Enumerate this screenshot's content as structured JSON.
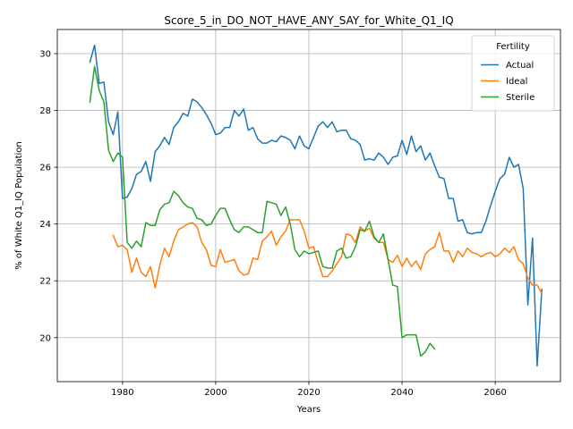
{
  "chart_data": {
    "type": "line",
    "title": "Score_5_in_DO_NOT_HAVE_ANY_SAY_for_White_Q1_IQ",
    "xlabel": "Years",
    "ylabel": "% of White Q1_IQ Population",
    "xlim": [
      1966,
      2074
    ],
    "ylim": [
      18.45,
      30.85
    ],
    "xticks": [
      1980,
      2000,
      2020,
      2040,
      2060
    ],
    "yticks": [
      20,
      22,
      24,
      26,
      28,
      30
    ],
    "grid": true,
    "legend": {
      "title": "Fertility",
      "position": "top-right"
    },
    "series": [
      {
        "name": "Actual",
        "color": "#1f77b4",
        "x": [
          1973,
          1974,
          1975,
          1976,
          1977,
          1978,
          1979,
          1980,
          1981,
          1982,
          1983,
          1984,
          1985,
          1986,
          1987,
          1988,
          1989,
          1990,
          1991,
          1992,
          1993,
          1994,
          1995,
          1996,
          1997,
          1998,
          1999,
          2000,
          2001,
          2002,
          2003,
          2004,
          2005,
          2006,
          2007,
          2008,
          2009,
          2010,
          2011,
          2012,
          2013,
          2014,
          2015,
          2016,
          2017,
          2018,
          2019,
          2020,
          2021,
          2022,
          2023,
          2024,
          2025,
          2026,
          2027,
          2028,
          2029,
          2030,
          2031,
          2032,
          2033,
          2034,
          2035,
          2036,
          2037,
          2038,
          2039,
          2040,
          2041,
          2042,
          2043,
          2044,
          2045,
          2046,
          2047,
          2048,
          2049,
          2050,
          2051,
          2052,
          2053,
          2054,
          2055,
          2056,
          2057,
          2058,
          2059,
          2060,
          2061,
          2062,
          2063,
          2064,
          2065,
          2066,
          2067,
          2068,
          2069,
          2070
        ],
        "values": [
          29.7,
          30.3,
          28.95,
          29.0,
          27.6,
          27.15,
          27.95,
          24.9,
          24.95,
          25.25,
          25.75,
          25.85,
          26.2,
          25.5,
          26.55,
          26.75,
          27.05,
          26.8,
          27.4,
          27.6,
          27.9,
          27.8,
          28.4,
          28.3,
          28.1,
          27.85,
          27.55,
          27.15,
          27.2,
          27.4,
          27.4,
          28.0,
          27.8,
          28.05,
          27.3,
          27.4,
          27.0,
          26.85,
          26.85,
          26.95,
          26.9,
          27.1,
          27.05,
          26.95,
          26.65,
          27.1,
          26.75,
          26.65,
          27.05,
          27.45,
          27.6,
          27.4,
          27.6,
          27.25,
          27.3,
          27.3,
          27.0,
          26.95,
          26.8,
          26.25,
          26.3,
          26.25,
          26.5,
          26.35,
          26.1,
          26.35,
          26.4,
          26.95,
          26.45,
          27.1,
          26.55,
          26.75,
          26.25,
          26.5,
          26.05,
          25.65,
          25.6,
          24.9,
          24.9,
          24.1,
          24.15,
          23.7,
          23.65,
          23.7,
          23.7,
          24.1,
          24.65,
          25.15,
          25.6,
          25.75,
          26.35,
          26.0,
          26.1,
          25.25,
          21.15,
          23.5,
          19.0,
          21.7
        ]
      },
      {
        "name": "Ideal",
        "color": "#ff7f0e",
        "x": [
          1978,
          1979,
          1980,
          1981,
          1982,
          1983,
          1984,
          1985,
          1986,
          1987,
          1988,
          1989,
          1990,
          1991,
          1992,
          1993,
          1994,
          1995,
          1996,
          1997,
          1998,
          1999,
          2000,
          2001,
          2002,
          2003,
          2004,
          2005,
          2006,
          2007,
          2008,
          2009,
          2010,
          2011,
          2012,
          2013,
          2014,
          2015,
          2016,
          2017,
          2018,
          2019,
          2020,
          2021,
          2022,
          2023,
          2024,
          2025,
          2026,
          2027,
          2028,
          2029,
          2030,
          2031,
          2032,
          2033,
          2034,
          2035,
          2036,
          2037,
          2038,
          2039,
          2040,
          2041,
          2042,
          2043,
          2044,
          2045,
          2046,
          2047,
          2048,
          2049,
          2050,
          2051,
          2052,
          2053,
          2054,
          2055,
          2056,
          2057,
          2058,
          2059,
          2060,
          2061,
          2062,
          2063,
          2064,
          2065,
          2066,
          2067,
          2068,
          2069,
          2070
        ],
        "values": [
          23.6,
          23.2,
          23.25,
          23.1,
          22.3,
          22.8,
          22.3,
          22.15,
          22.5,
          21.75,
          22.55,
          23.15,
          22.85,
          23.4,
          23.8,
          23.9,
          24.0,
          24.05,
          23.9,
          23.35,
          23.1,
          22.55,
          22.5,
          23.1,
          22.65,
          22.7,
          22.75,
          22.35,
          22.2,
          22.25,
          22.8,
          22.75,
          23.4,
          23.55,
          23.75,
          23.25,
          23.55,
          23.75,
          24.15,
          24.15,
          24.15,
          23.75,
          23.15,
          23.2,
          22.65,
          22.15,
          22.15,
          22.35,
          22.6,
          22.85,
          23.65,
          23.6,
          23.35,
          23.9,
          23.75,
          23.85,
          23.5,
          23.35,
          23.35,
          22.75,
          22.65,
          22.9,
          22.5,
          22.8,
          22.5,
          22.7,
          22.4,
          22.95,
          23.1,
          23.2,
          23.7,
          23.05,
          23.05,
          22.65,
          23.05,
          22.85,
          23.15,
          23.0,
          22.95,
          22.85,
          22.95,
          23.0,
          22.85,
          22.95,
          23.15,
          23.0,
          23.2,
          22.75,
          22.6,
          22.1,
          21.85,
          21.85,
          21.55
        ]
      },
      {
        "name": "Sterile",
        "color": "#2ca02c",
        "x": [
          1973,
          1974,
          1975,
          1976,
          1977,
          1978,
          1979,
          1980,
          1981,
          1982,
          1983,
          1984,
          1985,
          1986,
          1987,
          1988,
          1989,
          1990,
          1991,
          1992,
          1993,
          1994,
          1995,
          1996,
          1997,
          1998,
          1999,
          2000,
          2001,
          2002,
          2003,
          2004,
          2005,
          2006,
          2007,
          2008,
          2009,
          2010,
          2011,
          2012,
          2013,
          2014,
          2015,
          2016,
          2017,
          2018,
          2019,
          2020,
          2021,
          2022,
          2023,
          2024,
          2025,
          2026,
          2027,
          2028,
          2029,
          2030,
          2031,
          2032,
          2033,
          2034,
          2035,
          2036,
          2037,
          2038,
          2039,
          2040,
          2041,
          2042,
          2043,
          2044,
          2045,
          2046,
          2047
        ],
        "values": [
          28.3,
          29.55,
          28.7,
          28.3,
          26.6,
          26.2,
          26.5,
          26.35,
          23.35,
          23.15,
          23.4,
          23.2,
          24.05,
          23.95,
          23.95,
          24.5,
          24.7,
          24.75,
          25.15,
          25.0,
          24.75,
          24.6,
          24.55,
          24.2,
          24.15,
          23.95,
          24.0,
          24.3,
          24.55,
          24.55,
          24.15,
          23.8,
          23.7,
          23.9,
          23.9,
          23.8,
          23.7,
          23.7,
          24.8,
          24.75,
          24.7,
          24.3,
          24.6,
          24.0,
          23.1,
          22.85,
          23.05,
          22.95,
          23.0,
          23.05,
          22.5,
          22.45,
          22.45,
          23.05,
          23.15,
          22.8,
          22.85,
          23.2,
          23.8,
          23.75,
          24.1,
          23.55,
          23.35,
          23.65,
          22.75,
          21.85,
          21.8,
          20.0,
          20.1,
          20.1,
          20.1,
          19.35,
          19.5,
          19.8,
          19.6
        ]
      }
    ]
  }
}
